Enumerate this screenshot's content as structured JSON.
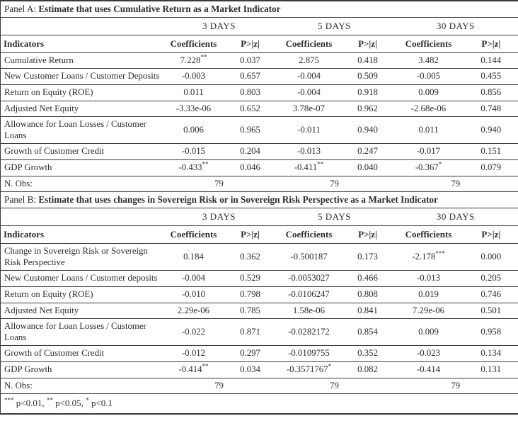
{
  "columns": {
    "indicator_header": "Indicators",
    "coef_header": "Coefficients",
    "p_header": "P>|z|",
    "groups": [
      "3 DAYS",
      "5 DAYS",
      "30 DAYS"
    ]
  },
  "panels": [
    {
      "label": "Panel A:",
      "title": "Estimate that uses Cumulative Return as a Market Indicator",
      "rows": [
        {
          "indicator": "Cumulative Return",
          "cells": [
            {
              "coef": "7.228",
              "stars": "**",
              "p": "0.037"
            },
            {
              "coef": "2.875",
              "stars": "",
              "p": "0.418"
            },
            {
              "coef": "3.482",
              "stars": "",
              "p": "0.144"
            }
          ]
        },
        {
          "indicator": "New Customer Loans / Customer Deposits",
          "cells": [
            {
              "coef": "-0.003",
              "stars": "",
              "p": "0.657"
            },
            {
              "coef": "-0.004",
              "stars": "",
              "p": "0.509"
            },
            {
              "coef": "-0.005",
              "stars": "",
              "p": "0.455"
            }
          ]
        },
        {
          "indicator": "Return on Equity (ROE)",
          "cells": [
            {
              "coef": "0.011",
              "stars": "",
              "p": "0.803"
            },
            {
              "coef": "-0.004",
              "stars": "",
              "p": "0.918"
            },
            {
              "coef": "0.009",
              "stars": "",
              "p": "0.856"
            }
          ]
        },
        {
          "indicator": "Adjusted Net Equity",
          "cells": [
            {
              "coef": "-3.33e-06",
              "stars": "",
              "p": "0.652"
            },
            {
              "coef": "3.78e-07",
              "stars": "",
              "p": "0.962"
            },
            {
              "coef": "-2.68e-06",
              "stars": "",
              "p": "0.748"
            }
          ]
        },
        {
          "indicator": "Allowance for Loan Losses / Customer Loans",
          "cells": [
            {
              "coef": "0.006",
              "stars": "",
              "p": "0.965"
            },
            {
              "coef": "-0.011",
              "stars": "",
              "p": "0.940"
            },
            {
              "coef": "0.011",
              "stars": "",
              "p": "0.940"
            }
          ]
        },
        {
          "indicator": "Growth of Customer Credit",
          "cells": [
            {
              "coef": "-0.015",
              "stars": "",
              "p": "0.204"
            },
            {
              "coef": "-0.013",
              "stars": "",
              "p": "0.247"
            },
            {
              "coef": "-0.017",
              "stars": "",
              "p": "0.151"
            }
          ]
        },
        {
          "indicator": "GDP Growth",
          "cells": [
            {
              "coef": "-0.433",
              "stars": "**",
              "p": "0.046"
            },
            {
              "coef": "-0.411",
              "stars": "**",
              "p": "0.040"
            },
            {
              "coef": "-0.367",
              "stars": "*",
              "p": "0.079"
            }
          ]
        }
      ],
      "n_obs_label": "N. Obs:",
      "n_obs": [
        "79",
        "79",
        "79"
      ]
    },
    {
      "label": "Panel B:",
      "title": "Estimate that uses changes in Sovereign Risk or in Sovereign Risk Perspective as a Market Indicator",
      "rows": [
        {
          "indicator": "Change in Sovereign Risk or Sovereign Risk Perspective",
          "cells": [
            {
              "coef": "0.184",
              "stars": "",
              "p": "0.362"
            },
            {
              "coef": "-0.500187",
              "stars": "",
              "p": "0.173"
            },
            {
              "coef": "-2.178",
              "stars": "***",
              "p": "0.000"
            }
          ]
        },
        {
          "indicator": "New Customer Loans / Customer deposits",
          "cells": [
            {
              "coef": "-0.004",
              "stars": "",
              "p": "0.529"
            },
            {
              "coef": "-0.0053027",
              "stars": "",
              "p": "0.466"
            },
            {
              "coef": "-0.013",
              "stars": "",
              "p": "0.205"
            }
          ]
        },
        {
          "indicator": "Return on Equity (ROE)",
          "cells": [
            {
              "coef": "-0.010",
              "stars": "",
              "p": "0.798"
            },
            {
              "coef": "-0.0106247",
              "stars": "",
              "p": "0.808"
            },
            {
              "coef": "0.019",
              "stars": "",
              "p": "0.746"
            }
          ]
        },
        {
          "indicator": "Adjusted Net Equity",
          "cells": [
            {
              "coef": "2.29e-06",
              "stars": "",
              "p": "0.785"
            },
            {
              "coef": "1.58e-06",
              "stars": "",
              "p": "0.841"
            },
            {
              "coef": "7.29e-06",
              "stars": "",
              "p": "0.501"
            }
          ]
        },
        {
          "indicator": "Allowance for Loan Losses / Customer Loans",
          "cells": [
            {
              "coef": "-0.022",
              "stars": "",
              "p": "0.871"
            },
            {
              "coef": "-0.0282172",
              "stars": "",
              "p": "0.854"
            },
            {
              "coef": "0.009",
              "stars": "",
              "p": "0.958"
            }
          ]
        },
        {
          "indicator": "Growth of Customer Credit",
          "cells": [
            {
              "coef": "-0.012",
              "stars": "",
              "p": "0.297"
            },
            {
              "coef": "-0.0109755",
              "stars": "",
              "p": "0.352"
            },
            {
              "coef": "-0.023",
              "stars": "",
              "p": "0.134"
            }
          ]
        },
        {
          "indicator": "GDP Growth",
          "cells": [
            {
              "coef": "-0.414",
              "stars": "**",
              "p": "0.034"
            },
            {
              "coef": "-0.3571767",
              "stars": "*",
              "p": "0.082"
            },
            {
              "coef": "-0.414",
              "stars": "",
              "p": "0.131"
            }
          ]
        }
      ],
      "n_obs_label": "N. Obs:",
      "n_obs": [
        "79",
        "79",
        "79"
      ]
    }
  ],
  "footnote": {
    "parts": [
      {
        "stars": "***",
        "text": " p<0.01, "
      },
      {
        "stars": "**",
        "text": " p<0.05, "
      },
      {
        "stars": "*",
        "text": " p<0.1"
      }
    ]
  }
}
